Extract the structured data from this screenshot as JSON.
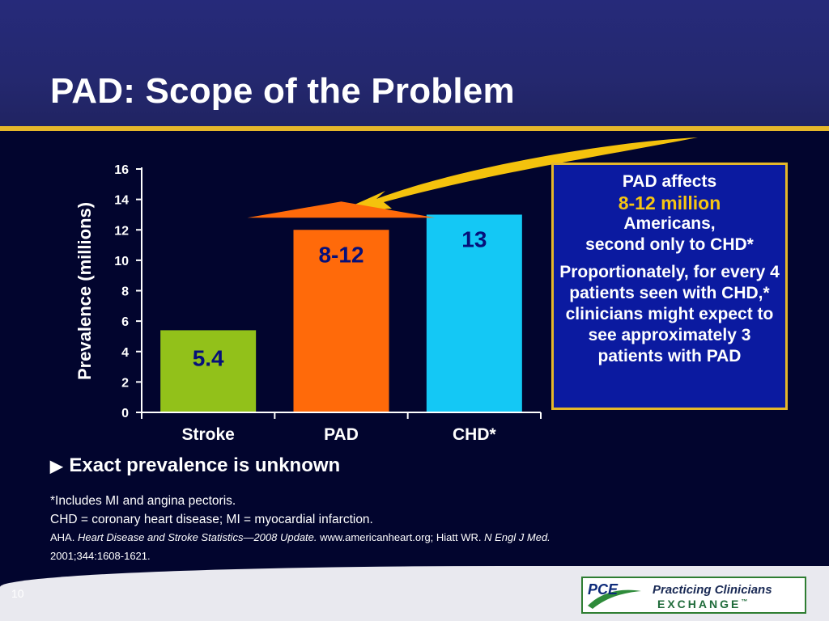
{
  "slide": {
    "title": "PAD: Scope of the Problem",
    "slide_number": "10"
  },
  "chart_data": {
    "type": "bar",
    "categories": [
      "Stroke",
      "PAD",
      "CHD*"
    ],
    "values": [
      5.4,
      12,
      13
    ],
    "data_labels": [
      "5.4",
      "8-12",
      "13"
    ],
    "bar_colors": [
      "#92c11a",
      "#ff6a0a",
      "#14c8f5"
    ],
    "data_label_color": "#06107a",
    "ylabel": "Prevalence (millions)",
    "ylim": [
      0,
      16
    ],
    "yticks": [
      0,
      2,
      4,
      6,
      8,
      10,
      12,
      14,
      16
    ],
    "grid": false,
    "legend": "none",
    "annotation_colors": {
      "swoosh": "#f4c20d",
      "arrowhead": "#ff6a0a"
    }
  },
  "info_box": {
    "line1": "PAD affects",
    "highlight": "8-12 million",
    "line3": "Americans,",
    "line4": "second only to CHD*",
    "para2": "Proportionately, for every 4 patients seen with CHD,* clinicians might expect to see approximately 3 patients with PAD"
  },
  "bullet": {
    "arrow_icon": "▶",
    "text": "Exact prevalence is unknown"
  },
  "footnotes": {
    "line1": "*Includes MI and angina pectoris.",
    "line2": "CHD = coronary heart disease; MI = myocardial infarction.",
    "ref_prefix": "AHA. ",
    "ref_title": "Heart Disease and Stroke Statistics—2008 Update.",
    "ref_mid": " www.americanheart.org; Hiatt WR. ",
    "ref_journal": "N Engl J Med.",
    "ref_end": "2001;344:1608-1621."
  },
  "logo": {
    "pce": "PCE",
    "name_line1": "Practicing Clinicians",
    "name_line2": "EXCHANGE",
    "trademark": "™"
  }
}
